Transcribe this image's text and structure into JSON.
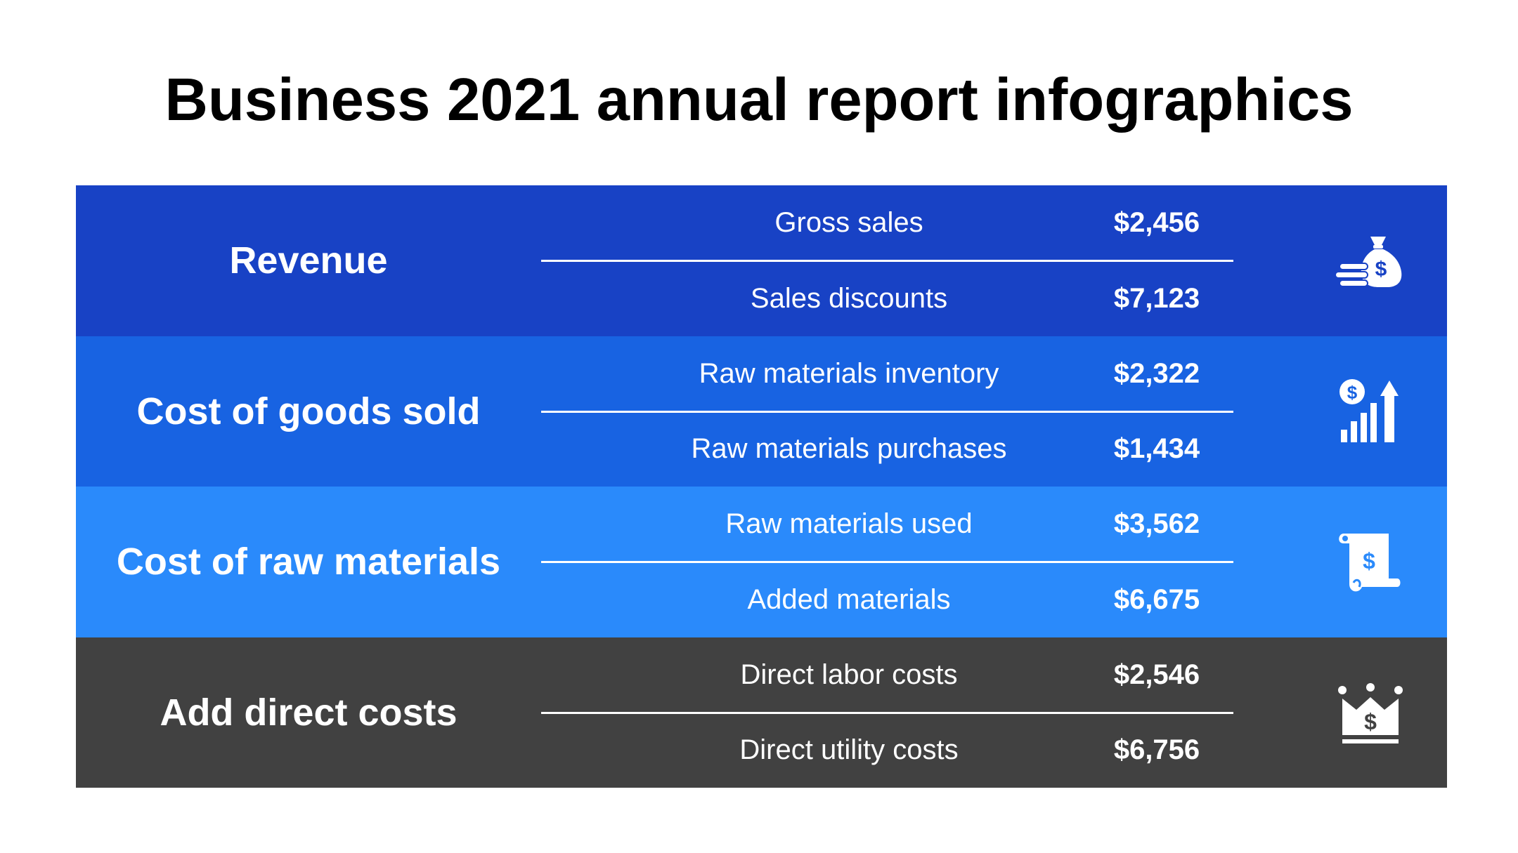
{
  "title": "Business 2021 annual report infographics",
  "rows": [
    {
      "label": "Revenue",
      "color": "#1842C5",
      "icon": "money-bag-coins-icon",
      "items": [
        {
          "name": "Gross sales",
          "value": "$2,456"
        },
        {
          "name": "Sales discounts",
          "value": "$7,123"
        }
      ]
    },
    {
      "label": "Cost of goods sold",
      "color": "#1863E2",
      "icon": "dollar-growth-chart-icon",
      "items": [
        {
          "name": "Raw materials inventory",
          "value": "$2,322"
        },
        {
          "name": "Raw materials purchases",
          "value": "$1,434"
        }
      ]
    },
    {
      "label": "Cost of raw materials",
      "color": "#2A8AFB",
      "icon": "dollar-scroll-icon",
      "items": [
        {
          "name": "Raw materials used",
          "value": "$3,562"
        },
        {
          "name": "Added materials",
          "value": "$6,675"
        }
      ]
    },
    {
      "label": "Add direct costs",
      "color": "#414141",
      "icon": "dollar-crown-icon",
      "items": [
        {
          "name": "Direct labor costs",
          "value": "$2,546"
        },
        {
          "name": "Direct utility costs",
          "value": "$6,756"
        }
      ]
    }
  ]
}
